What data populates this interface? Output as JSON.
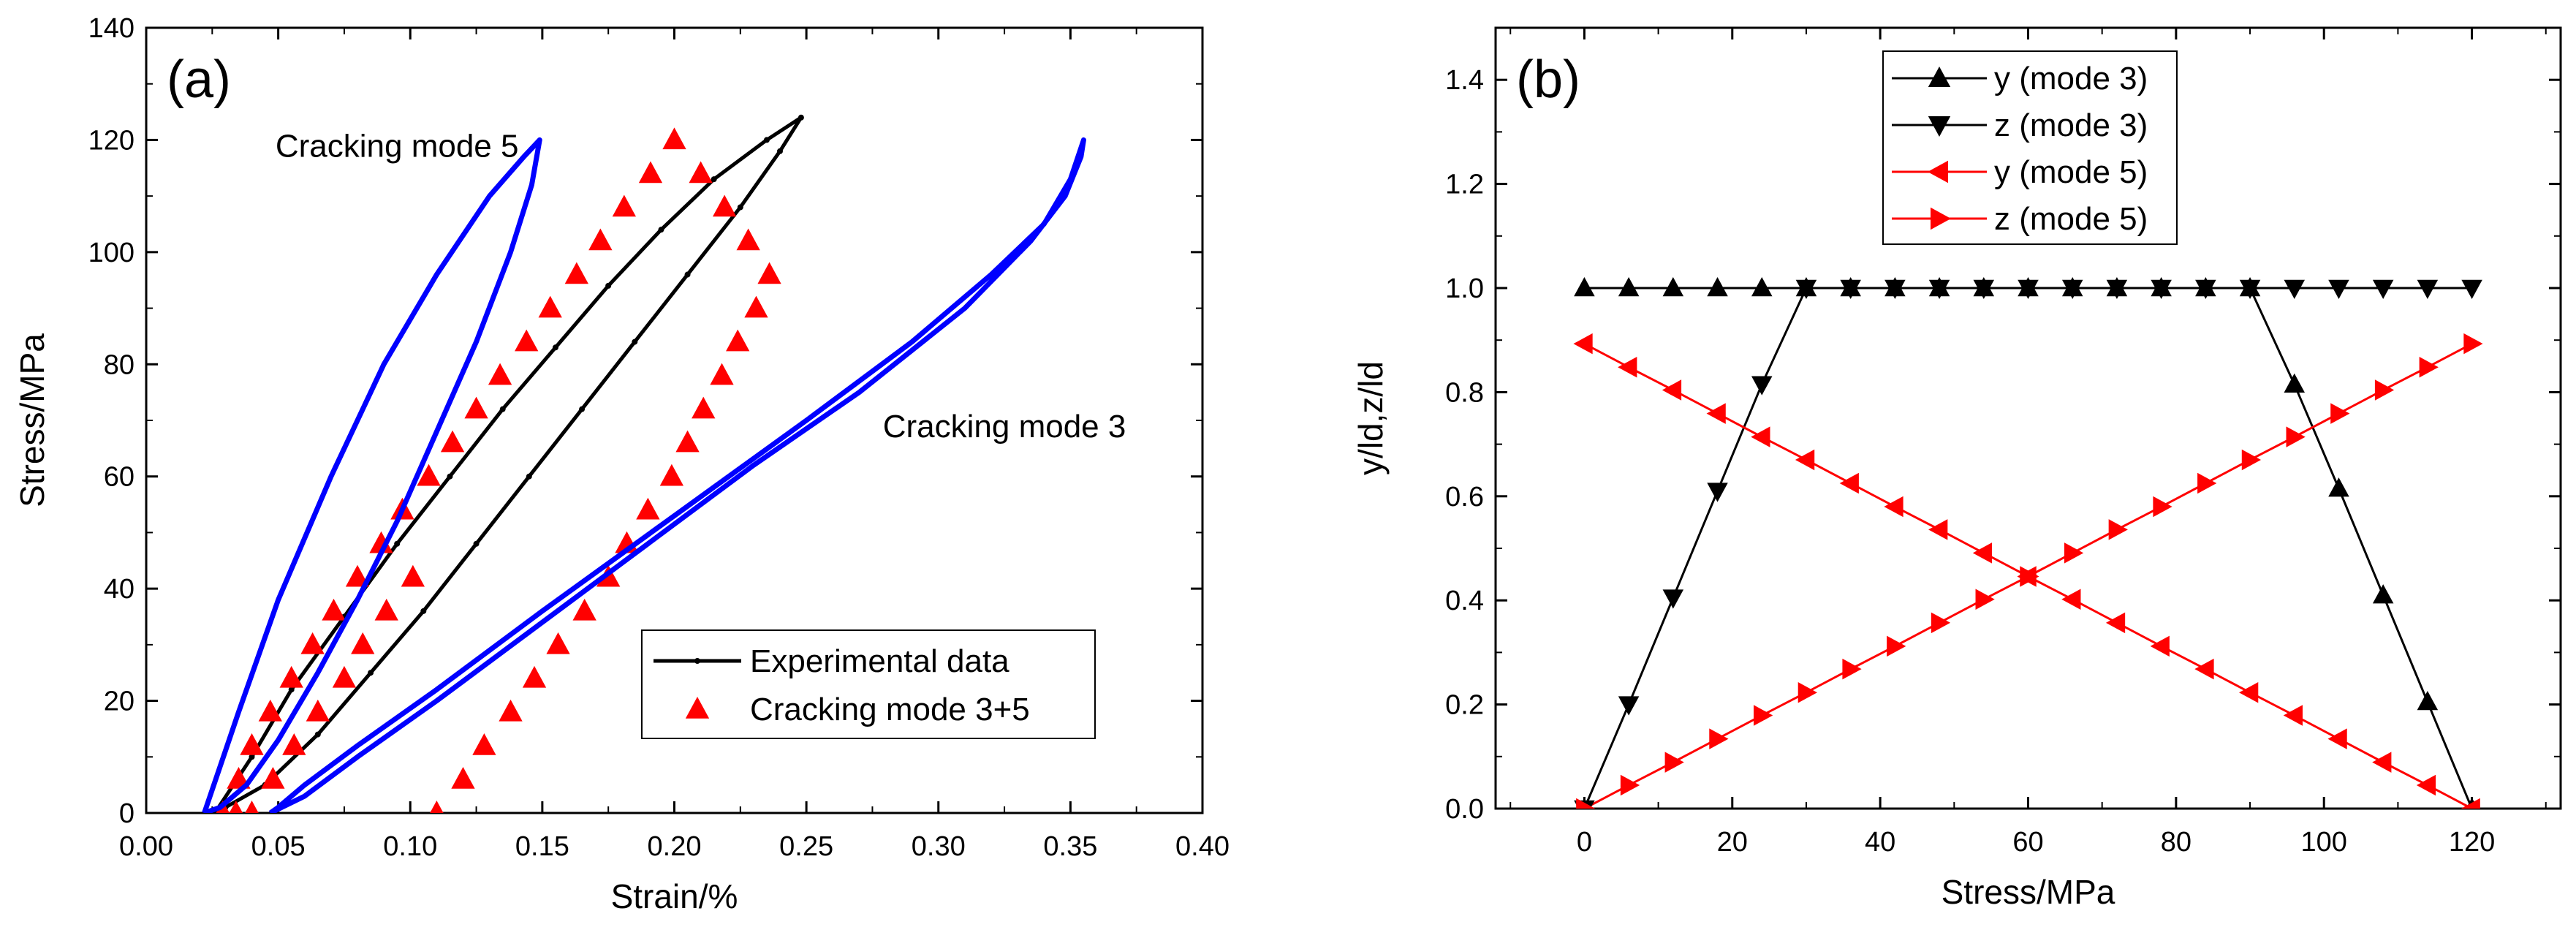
{
  "chart_data": [
    {
      "panel_label": "(a)",
      "type": "line",
      "xlabel": "Strain/%",
      "ylabel": "Stress/MPa",
      "xlim": [
        0.0,
        0.4
      ],
      "ylim": [
        0,
        140
      ],
      "xticks": [
        "0.00",
        "0.05",
        "0.10",
        "0.15",
        "0.20",
        "0.25",
        "0.30",
        "0.35",
        "0.40"
      ],
      "yticks": [
        "0",
        "20",
        "40",
        "60",
        "80",
        "100",
        "120",
        "140"
      ],
      "legend_position": "bottom-right",
      "annotations": [
        {
          "text": "Cracking mode 5",
          "x": 0.095,
          "y": 117
        },
        {
          "text": "Cracking mode 3",
          "x": 0.325,
          "y": 67
        }
      ],
      "series": [
        {
          "name": "Experimental data",
          "color": "#000000",
          "style": "line-with-small-markers",
          "in_legend": true,
          "x": [
            0.026,
            0.04,
            0.055,
            0.075,
            0.095,
            0.115,
            0.135,
            0.155,
            0.175,
            0.195,
            0.215,
            0.235,
            0.248,
            0.24,
            0.225,
            0.205,
            0.185,
            0.165,
            0.145,
            0.125,
            0.105,
            0.085,
            0.065,
            0.045,
            0.03,
            0.026
          ],
          "y": [
            0,
            10,
            22,
            35,
            48,
            60,
            72,
            83,
            94,
            104,
            113,
            120,
            124,
            118,
            108,
            96,
            84,
            72,
            60,
            48,
            36,
            25,
            14,
            5,
            1,
            0
          ]
        },
        {
          "name": "Cracking mode 3+5",
          "color": "#ff0000",
          "marker": "triangle-up",
          "in_legend": true,
          "x": [
            0.029,
            0.035,
            0.04,
            0.047,
            0.055,
            0.063,
            0.071,
            0.08,
            0.089,
            0.097,
            0.107,
            0.116,
            0.125,
            0.134,
            0.144,
            0.153,
            0.163,
            0.172,
            0.181,
            0.191,
            0.2,
            0.21,
            0.219,
            0.228,
            0.236,
            0.231,
            0.224,
            0.218,
            0.211,
            0.205,
            0.199,
            0.19,
            0.182,
            0.175,
            0.166,
            0.156,
            0.147,
            0.138,
            0.128,
            0.12,
            0.11,
            0.101,
            0.091,
            0.082,
            0.075,
            0.065,
            0.056,
            0.048,
            0.04,
            0.034
          ],
          "y": [
            0,
            6,
            12,
            18,
            24,
            30,
            36,
            42,
            48,
            54,
            60,
            66,
            72,
            78,
            84,
            90,
            96,
            102,
            108,
            114,
            120,
            114,
            108,
            102,
            96,
            90,
            84,
            78,
            72,
            66,
            60,
            54,
            48,
            42,
            36,
            30,
            24,
            18,
            12,
            6,
            0,
            42,
            36,
            30,
            24,
            18,
            12,
            6,
            0,
            0
          ]
        },
        {
          "name": "Cracking mode 5",
          "color": "#0000ff",
          "in_legend": false,
          "x": [
            0.022,
            0.035,
            0.05,
            0.07,
            0.09,
            0.11,
            0.13,
            0.143,
            0.149,
            0.146,
            0.138,
            0.125,
            0.11,
            0.095,
            0.08,
            0.065,
            0.05,
            0.038,
            0.028,
            0.022
          ],
          "y": [
            0,
            18,
            38,
            60,
            80,
            96,
            110,
            117,
            120,
            112,
            100,
            84,
            68,
            52,
            38,
            25,
            13,
            5,
            1,
            0
          ]
        },
        {
          "name": "Cracking mode 3",
          "color": "#0000ff",
          "in_legend": false,
          "x": [
            0.047,
            0.06,
            0.08,
            0.11,
            0.15,
            0.19,
            0.23,
            0.27,
            0.31,
            0.335,
            0.348,
            0.354,
            0.355,
            0.35,
            0.34,
            0.32,
            0.29,
            0.25,
            0.2,
            0.15,
            0.11,
            0.08,
            0.06,
            0.05,
            0.047
          ],
          "y": [
            0,
            3,
            10,
            20,
            34,
            48,
            62,
            75,
            90,
            102,
            110,
            117,
            120,
            113,
            105,
            96,
            84,
            70,
            53,
            36,
            22,
            12,
            5,
            1,
            0
          ]
        }
      ],
      "legend": [
        {
          "label": "Experimental data",
          "color": "#000000",
          "marker": "line"
        },
        {
          "label": "Cracking mode 3+5",
          "color": "#ff0000",
          "marker": "triangle-up"
        }
      ]
    },
    {
      "panel_label": "(b)",
      "type": "line",
      "xlabel": "Stress/MPa",
      "ylabel": "y/ld,z/ld",
      "xlim": [
        -12,
        132
      ],
      "ylim": [
        0.0,
        1.5
      ],
      "xticks": [
        "0",
        "20",
        "40",
        "60",
        "80",
        "100",
        "120"
      ],
      "yticks": [
        "0.0",
        "0.2",
        "0.4",
        "0.6",
        "0.8",
        "1.0",
        "1.2",
        "1.4"
      ],
      "legend_position": "top-left",
      "x": [
        0,
        6,
        12,
        18,
        24,
        30,
        36,
        42,
        48,
        54,
        60,
        66,
        72,
        78,
        84,
        90,
        96,
        102,
        108,
        114,
        120
      ],
      "series": [
        {
          "name": "y (mode 3)",
          "color": "#000000",
          "marker": "triangle-up",
          "values": [
            1.0,
            1.0,
            1.0,
            1.0,
            1.0,
            1.0,
            1.0,
            1.0,
            1.0,
            1.0,
            1.0,
            1.0,
            1.0,
            1.0,
            1.0,
            1.0,
            0.815,
            0.615,
            0.41,
            0.205,
            0.0
          ]
        },
        {
          "name": "z (mode 3)",
          "color": "#000000",
          "marker": "triangle-down",
          "values": [
            0.0,
            0.2,
            0.405,
            0.61,
            0.815,
            1.0,
            1.0,
            1.0,
            1.0,
            1.0,
            1.0,
            1.0,
            1.0,
            1.0,
            1.0,
            1.0,
            1.0,
            1.0,
            1.0,
            1.0,
            1.0
          ]
        },
        {
          "name": "y (mode 5)",
          "color": "#ff0000",
          "marker": "triangle-left",
          "values": [
            0.893,
            0.848,
            0.804,
            0.759,
            0.714,
            0.67,
            0.625,
            0.58,
            0.536,
            0.491,
            0.446,
            0.402,
            0.357,
            0.312,
            0.268,
            0.223,
            0.179,
            0.134,
            0.089,
            0.045,
            0.0
          ]
        },
        {
          "name": "z (mode 5)",
          "color": "#ff0000",
          "marker": "triangle-right",
          "values": [
            0.0,
            0.045,
            0.089,
            0.134,
            0.179,
            0.223,
            0.268,
            0.312,
            0.357,
            0.402,
            0.446,
            0.491,
            0.536,
            0.58,
            0.625,
            0.67,
            0.714,
            0.759,
            0.804,
            0.848,
            0.893
          ]
        }
      ]
    }
  ]
}
